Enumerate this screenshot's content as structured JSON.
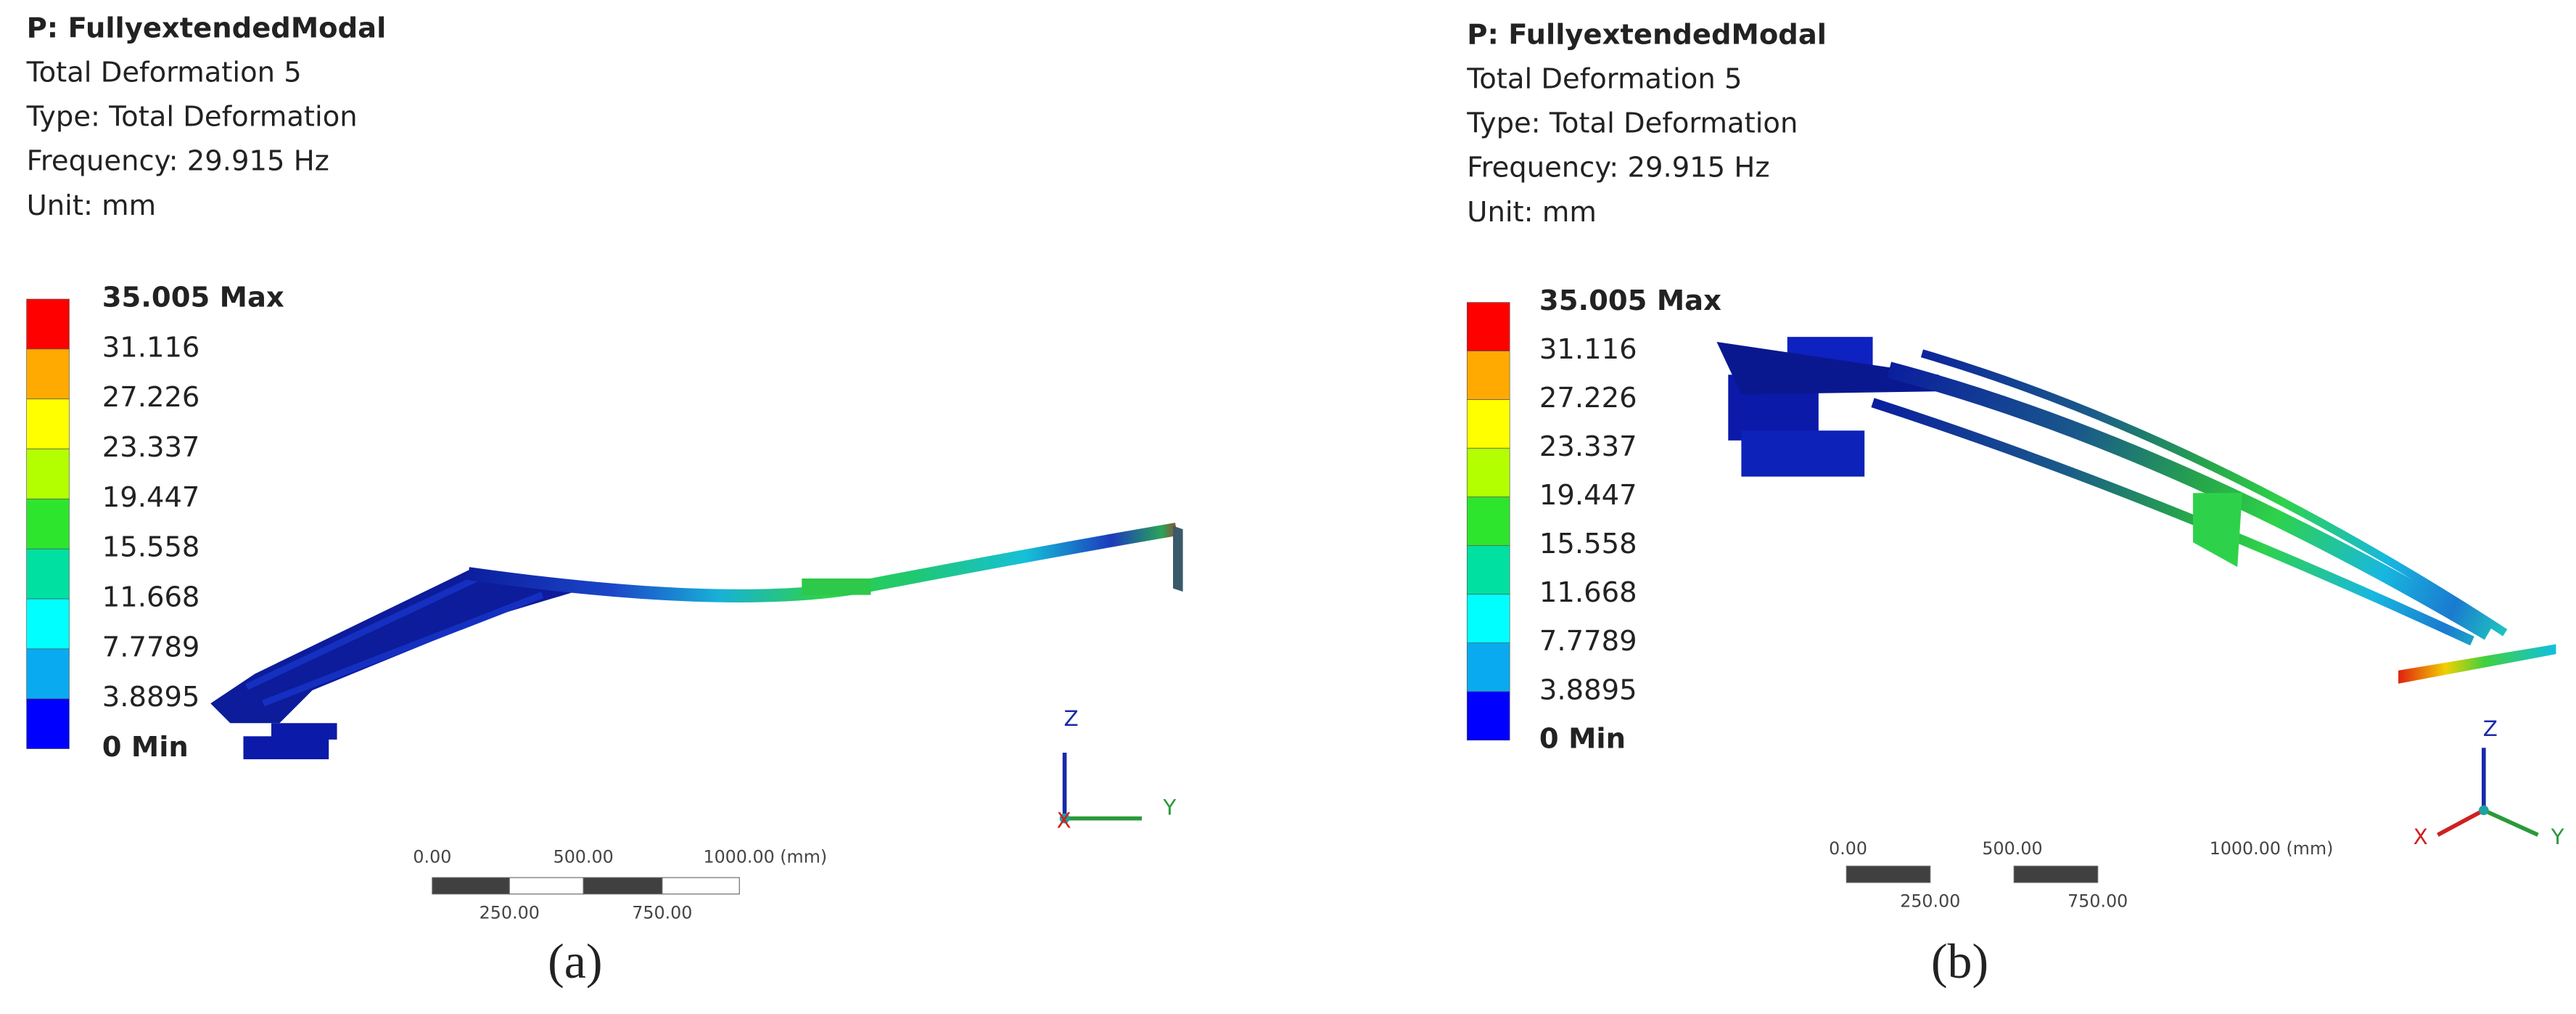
{
  "panels": [
    {
      "header": {
        "title": "P: FullyextendedModal",
        "lines": [
          "Total Deformation 5",
          "Type: Total Deformation",
          "Frequency: 29.915 Hz",
          "Unit: mm"
        ]
      },
      "legend": {
        "labels": [
          "35.005 Max",
          "31.116",
          "27.226",
          "23.337",
          "19.447",
          "15.558",
          "11.668",
          "7.7789",
          "3.8895",
          "0 Min"
        ]
      },
      "scale_bar": {
        "top_labels": [
          "0.00",
          "500.00",
          "1000.00 (mm)"
        ],
        "bottom_labels": [
          "250.00",
          "750.00"
        ]
      },
      "triad": {
        "z": "Z",
        "y": "Y",
        "x": "X"
      },
      "caption": "(a)"
    },
    {
      "header": {
        "title": "P: FullyextendedModal",
        "lines": [
          "Total Deformation 5",
          "Type: Total Deformation",
          "Frequency: 29.915 Hz",
          "Unit: mm"
        ]
      },
      "legend": {
        "labels": [
          "35.005 Max",
          "31.116",
          "27.226",
          "23.337",
          "19.447",
          "15.558",
          "11.668",
          "7.7789",
          "3.8895",
          "0 Min"
        ]
      },
      "scale_bar": {
        "top_labels": [
          "0.00",
          "500.00",
          "1000.00 (mm)"
        ],
        "bottom_labels": [
          "250.00",
          "750.00"
        ]
      },
      "triad": {
        "z": "Z",
        "y": "Y",
        "x": "X"
      },
      "caption": "(b)"
    }
  ]
}
